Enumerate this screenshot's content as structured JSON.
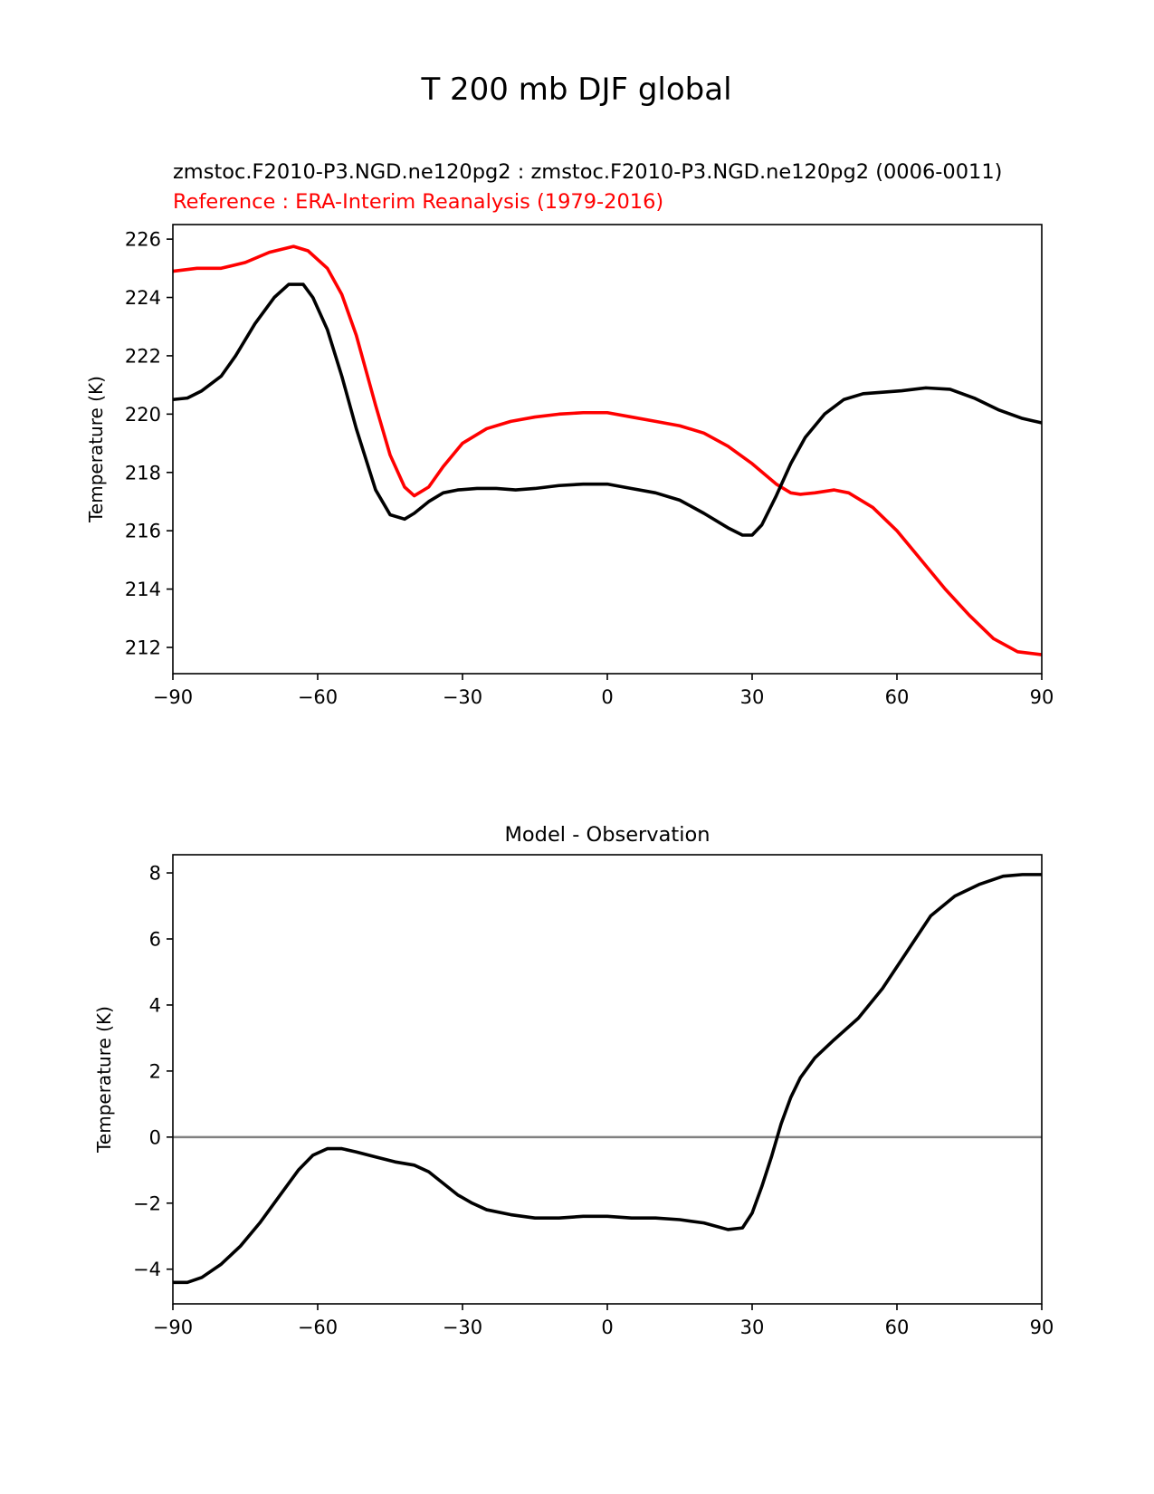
{
  "figure": {
    "suptitle": "T 200 mb DJF global"
  },
  "chart_data": [
    {
      "type": "line",
      "title_left": "zmstoc.F2010-P3.NGD.ne120pg2 : zmstoc.F2010-P3.NGD.ne120pg2 (0006-0011)",
      "title_left_ref": "Reference : ERA-Interim Reanalysis (1979-2016)",
      "xlabel": "",
      "ylabel": "Temperature (K)",
      "xlim": [
        -90,
        90
      ],
      "ylim": [
        211.1,
        226.5
      ],
      "xticks": [
        -90,
        -60,
        -30,
        0,
        30,
        60,
        90
      ],
      "xtick_labels": [
        "−90",
        "−60",
        "−30",
        "0",
        "30",
        "60",
        "90"
      ],
      "yticks": [
        212,
        214,
        216,
        218,
        220,
        222,
        224,
        226
      ],
      "ytick_labels": [
        "212",
        "214",
        "216",
        "218",
        "220",
        "222",
        "224",
        "226"
      ],
      "series": [
        {
          "name": "ERA-Interim Reanalysis (1979-2016)",
          "color": "#ff0000",
          "x": [
            -90,
            -85,
            -80,
            -75,
            -70,
            -65,
            -62,
            -58,
            -55,
            -52,
            -48,
            -45,
            -42,
            -40,
            -37,
            -34,
            -30,
            -25,
            -20,
            -15,
            -10,
            -5,
            0,
            5,
            10,
            15,
            20,
            25,
            30,
            35,
            38,
            40,
            43,
            47,
            50,
            55,
            60,
            65,
            70,
            75,
            80,
            85,
            90
          ],
          "y": [
            224.9,
            225.0,
            225.0,
            225.2,
            225.55,
            225.75,
            225.6,
            225.0,
            224.1,
            222.7,
            220.3,
            218.6,
            217.5,
            217.2,
            217.5,
            218.2,
            219.0,
            219.5,
            219.75,
            219.9,
            220.0,
            220.05,
            220.05,
            219.9,
            219.75,
            219.6,
            219.35,
            218.9,
            218.3,
            217.6,
            217.3,
            217.25,
            217.3,
            217.4,
            217.3,
            216.8,
            216.0,
            215.0,
            214.0,
            213.1,
            212.3,
            211.85,
            211.75
          ]
        },
        {
          "name": "zmstoc.F2010-P3.NGD.ne120pg2 (0006-0011)",
          "color": "#000000",
          "x": [
            -90,
            -87,
            -84,
            -80,
            -77,
            -73,
            -69,
            -66,
            -63,
            -61,
            -58,
            -55,
            -52,
            -48,
            -45,
            -42,
            -40,
            -37,
            -34,
            -31,
            -27,
            -23,
            -19,
            -15,
            -10,
            -5,
            0,
            5,
            10,
            15,
            20,
            25,
            28,
            30,
            32,
            35,
            38,
            41,
            45,
            49,
            53,
            57,
            61,
            66,
            71,
            76,
            81,
            86,
            90
          ],
          "y": [
            220.5,
            220.55,
            220.8,
            221.3,
            222.0,
            223.1,
            224.0,
            224.45,
            224.45,
            224.0,
            222.9,
            221.3,
            219.5,
            217.4,
            216.55,
            216.4,
            216.6,
            217.0,
            217.3,
            217.4,
            217.45,
            217.45,
            217.4,
            217.45,
            217.55,
            217.6,
            217.6,
            217.45,
            217.3,
            217.05,
            216.6,
            216.1,
            215.85,
            215.85,
            216.2,
            217.2,
            218.3,
            219.2,
            220.0,
            220.5,
            220.7,
            220.75,
            220.8,
            220.9,
            220.85,
            220.55,
            220.15,
            219.85,
            219.7
          ]
        }
      ]
    },
    {
      "type": "line",
      "title": "Model - Observation",
      "xlabel": "",
      "ylabel": "Temperature (K)",
      "xlim": [
        -90,
        90
      ],
      "ylim": [
        -5.05,
        8.55
      ],
      "xticks": [
        -90,
        -60,
        -30,
        0,
        30,
        60,
        90
      ],
      "xtick_labels": [
        "−90",
        "−60",
        "−30",
        "0",
        "30",
        "60",
        "90"
      ],
      "yticks": [
        -4,
        -2,
        0,
        2,
        4,
        6,
        8
      ],
      "ytick_labels": [
        "−4",
        "−2",
        "0",
        "2",
        "4",
        "6",
        "8"
      ],
      "zero_line_color": "#808080",
      "series": [
        {
          "name": "Model - Observation",
          "color": "#000000",
          "x": [
            -90,
            -87,
            -84,
            -80,
            -76,
            -72,
            -68,
            -64,
            -61,
            -58,
            -55,
            -52,
            -48,
            -44,
            -40,
            -37,
            -34,
            -31,
            -28,
            -25,
            -20,
            -15,
            -10,
            -5,
            0,
            5,
            10,
            15,
            20,
            25,
            28,
            30,
            32,
            34,
            36,
            38,
            40,
            43,
            47,
            52,
            57,
            62,
            67,
            72,
            77,
            82,
            86,
            90
          ],
          "y": [
            -4.4,
            -4.4,
            -4.25,
            -3.85,
            -3.3,
            -2.6,
            -1.8,
            -1.0,
            -0.55,
            -0.35,
            -0.35,
            -0.45,
            -0.6,
            -0.75,
            -0.85,
            -1.05,
            -1.4,
            -1.75,
            -2.0,
            -2.2,
            -2.35,
            -2.45,
            -2.45,
            -2.4,
            -2.4,
            -2.45,
            -2.45,
            -2.5,
            -2.6,
            -2.8,
            -2.75,
            -2.3,
            -1.5,
            -0.6,
            0.4,
            1.2,
            1.8,
            2.4,
            2.95,
            3.6,
            4.5,
            5.6,
            6.7,
            7.3,
            7.65,
            7.9,
            7.95,
            7.95
          ]
        }
      ]
    }
  ]
}
